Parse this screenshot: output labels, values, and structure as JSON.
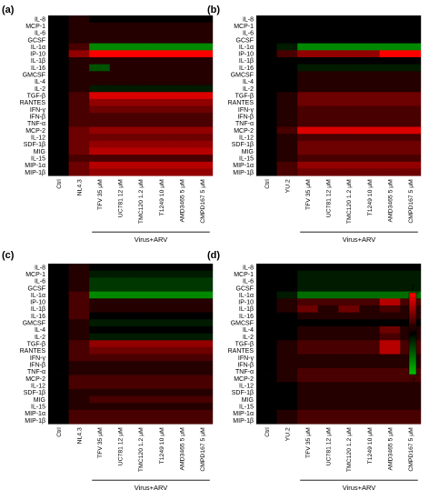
{
  "chart_data": [
    {
      "type": "heatmap",
      "panel_label": "(a)",
      "rows": [
        "IL-8",
        "MCP-1",
        "IL-6",
        "GCSF",
        "IL-1α",
        "IP-10",
        "IL-1β",
        "IL-16",
        "GMCSF",
        "IL-4",
        "IL-2",
        "TGF-β",
        "RANTES",
        "IFN-γ",
        "IFN-β",
        "TNF-α",
        "MCP-2",
        "IL-12",
        "SDF-1β",
        "MIG",
        "IL-15",
        "MIP-1α",
        "MIP-1β"
      ],
      "columns": [
        "Ctrl",
        "NL4.3",
        "TFV 35 μM",
        "UC781 12 μM",
        "TMC120 1.2 μM",
        "T1249 10 μM",
        "AMD3465 5 μM",
        "CMPD167 5 μM"
      ],
      "group_label": "Virus+ARV",
      "group_start": 2,
      "values": [
        [
          0,
          1,
          0,
          0,
          0,
          0,
          0,
          0
        ],
        [
          0,
          1,
          1,
          1,
          1,
          1,
          1,
          1
        ],
        [
          0,
          1,
          1,
          1,
          1,
          1,
          1,
          1
        ],
        [
          0,
          1,
          1,
          1,
          1,
          1,
          1,
          1
        ],
        [
          0,
          2,
          -5,
          -5,
          -5,
          -5,
          -5,
          -5
        ],
        [
          0,
          4,
          7,
          7,
          7,
          7,
          7,
          7
        ],
        [
          0,
          1,
          1,
          1,
          1,
          1,
          1,
          1
        ],
        [
          0,
          1,
          -3,
          1,
          1,
          1,
          1,
          1
        ],
        [
          0,
          1,
          1,
          1,
          1,
          1,
          1,
          1
        ],
        [
          0,
          1,
          1,
          1,
          1,
          1,
          1,
          1
        ],
        [
          0,
          1,
          -1,
          -1,
          -1,
          -1,
          -1,
          -1
        ],
        [
          0,
          2,
          6,
          6,
          6,
          6,
          6,
          6
        ],
        [
          0,
          2,
          4,
          4,
          4,
          4,
          4,
          4
        ],
        [
          0,
          2,
          3,
          3,
          3,
          3,
          3,
          3
        ],
        [
          0,
          2,
          2,
          2,
          2,
          2,
          2,
          2
        ],
        [
          0,
          2,
          2,
          2,
          2,
          2,
          2,
          2
        ],
        [
          0,
          3,
          4,
          4,
          4,
          4,
          4,
          4
        ],
        [
          0,
          3,
          3,
          3,
          3,
          3,
          3,
          3
        ],
        [
          0,
          3,
          4,
          4,
          4,
          4,
          4,
          4
        ],
        [
          0,
          3,
          5,
          5,
          5,
          5,
          5,
          5
        ],
        [
          0,
          2,
          2,
          2,
          2,
          2,
          2,
          2
        ],
        [
          0,
          3,
          5,
          5,
          5,
          5,
          5,
          5
        ],
        [
          0,
          3,
          4,
          4,
          4,
          4,
          4,
          4
        ]
      ]
    },
    {
      "type": "heatmap",
      "panel_label": "(b)",
      "rows": [
        "IL-8",
        "MCP-1",
        "IL-6",
        "GCSF",
        "IL-1α",
        "IP-10",
        "IL-1β",
        "IL-16",
        "GMCSF",
        "IL-4",
        "IL-2",
        "TGF-β",
        "RANTES",
        "IFN-γ",
        "IFN-β",
        "TNF-α",
        "MCP-2",
        "IL-12",
        "SDF-1β",
        "MIG",
        "IL-15",
        "MIP-1α",
        "MIP-1β"
      ],
      "columns": [
        "Ctrl",
        "YU.2",
        "TFV 35 μM",
        "UC781 12 μM",
        "TMC120 1.2 μM",
        "T1249 10 μM",
        "AMD3465 5 μM",
        "CMPD167 5 μM"
      ],
      "group_label": "Virus+ARV",
      "group_start": 2,
      "values": [
        [
          0,
          0,
          0,
          0,
          0,
          0,
          0,
          0
        ],
        [
          0,
          0,
          0,
          0,
          0,
          0,
          0,
          0
        ],
        [
          0,
          0,
          0,
          0,
          0,
          0,
          0,
          0
        ],
        [
          0,
          0,
          0,
          0,
          0,
          0,
          0,
          0
        ],
        [
          0,
          -1,
          -5,
          -5,
          -5,
          -5,
          -5,
          -5
        ],
        [
          0,
          2,
          4,
          4,
          4,
          4,
          7,
          7
        ],
        [
          0,
          0,
          0,
          0,
          0,
          0,
          0,
          0
        ],
        [
          0,
          0,
          -1,
          -1,
          -1,
          -1,
          -1,
          -1
        ],
        [
          0,
          0,
          1,
          1,
          1,
          1,
          1,
          1
        ],
        [
          0,
          0,
          1,
          1,
          1,
          1,
          1,
          1
        ],
        [
          0,
          0,
          1,
          1,
          1,
          1,
          1,
          1
        ],
        [
          0,
          1,
          3,
          3,
          3,
          3,
          3,
          3
        ],
        [
          0,
          1,
          3,
          3,
          3,
          3,
          3,
          3
        ],
        [
          0,
          1,
          2,
          2,
          2,
          2,
          2,
          2
        ],
        [
          0,
          1,
          2,
          2,
          2,
          2,
          2,
          2
        ],
        [
          0,
          1,
          2,
          2,
          2,
          2,
          2,
          2
        ],
        [
          0,
          2,
          6,
          6,
          6,
          6,
          6,
          6
        ],
        [
          0,
          1,
          2,
          2,
          2,
          2,
          2,
          2
        ],
        [
          0,
          1,
          3,
          3,
          3,
          3,
          3,
          3
        ],
        [
          0,
          1,
          3,
          3,
          3,
          3,
          3,
          3
        ],
        [
          0,
          1,
          2,
          2,
          2,
          2,
          2,
          2
        ],
        [
          0,
          2,
          4,
          4,
          4,
          4,
          4,
          4
        ],
        [
          0,
          2,
          3,
          3,
          3,
          3,
          3,
          3
        ]
      ]
    },
    {
      "type": "heatmap",
      "panel_label": "(c)",
      "rows": [
        "IL-8",
        "MCP-1",
        "IL-6",
        "GCSF",
        "IL-1α",
        "IP-10",
        "IL-1β",
        "IL-16",
        "GMCSF",
        "IL-4",
        "IL-2",
        "TGF-β",
        "RANTES",
        "IFN-γ",
        "IFN-β",
        "TNF-α",
        "MCP-2",
        "IL-12",
        "SDF-1β",
        "MIG",
        "IL-15",
        "MIP-1α",
        "MIP-1β"
      ],
      "columns": [
        "Ctrl",
        "NL4.3",
        "TFV 35 μM",
        "UC781 12 μM",
        "TMC120 1.2 μM",
        "T1249 10 μM",
        "AMD3465 5 μM",
        "CMPD167 5 μM"
      ],
      "group_label": "Virus+ARV",
      "group_start": 2,
      "values": [
        [
          0,
          1,
          0,
          0,
          0,
          0,
          0,
          0
        ],
        [
          0,
          1,
          -1,
          -1,
          -1,
          -1,
          -1,
          -1
        ],
        [
          0,
          1,
          -2,
          -2,
          -2,
          -2,
          -2,
          -2
        ],
        [
          0,
          1,
          -2,
          -2,
          -2,
          -2,
          -2,
          -2
        ],
        [
          0,
          2,
          -5,
          -5,
          -5,
          -5,
          -5,
          -5
        ],
        [
          0,
          2,
          1,
          1,
          1,
          1,
          1,
          1
        ],
        [
          0,
          2,
          1,
          1,
          1,
          1,
          1,
          1
        ],
        [
          0,
          2,
          0,
          0,
          0,
          0,
          0,
          0
        ],
        [
          0,
          1,
          -1,
          -1,
          -1,
          -1,
          -1,
          -1
        ],
        [
          0,
          1,
          0,
          0,
          0,
          0,
          0,
          0
        ],
        [
          0,
          1,
          -1,
          -1,
          -1,
          -1,
          -1,
          -1
        ],
        [
          0,
          2,
          4,
          4,
          4,
          4,
          4,
          4
        ],
        [
          0,
          2,
          3,
          3,
          3,
          3,
          3,
          3
        ],
        [
          0,
          2,
          2,
          2,
          2,
          2,
          2,
          2
        ],
        [
          0,
          1,
          1,
          1,
          1,
          1,
          1,
          1
        ],
        [
          0,
          1,
          1,
          1,
          1,
          1,
          1,
          1
        ],
        [
          0,
          2,
          2,
          2,
          2,
          2,
          2,
          2
        ],
        [
          0,
          2,
          2,
          2,
          2,
          2,
          2,
          2
        ],
        [
          0,
          1,
          1,
          1,
          1,
          1,
          1,
          1
        ],
        [
          0,
          1,
          2,
          2,
          2,
          2,
          2,
          2
        ],
        [
          0,
          1,
          1,
          1,
          1,
          1,
          1,
          1
        ],
        [
          0,
          2,
          2,
          2,
          2,
          2,
          2,
          2
        ],
        [
          0,
          2,
          2,
          2,
          2,
          2,
          2,
          2
        ]
      ]
    },
    {
      "type": "heatmap",
      "panel_label": "(d)",
      "rows": [
        "IL-8",
        "MCP-1",
        "IL-6",
        "GCSF",
        "IL-1α",
        "IP-10",
        "IL-1β",
        "IL-16",
        "GMCSF",
        "IL-4",
        "IL-2",
        "TGF-β",
        "RANTES",
        "IFN-γ",
        "IFN-β",
        "TNF-α",
        "MCP-2",
        "IL-12",
        "SDF-1β",
        "MIG",
        "IL-15",
        "MIP-1α",
        "MIP-1β"
      ],
      "columns": [
        "Ctrl",
        "YU.2",
        "TFV 35 μM",
        "UC781 12 μM",
        "TMC120 1.2 μM",
        "T1249 10 μM",
        "AMD3465 5 μM",
        "CMPD167 5 μM"
      ],
      "group_label": "Virus+ARV",
      "group_start": 2,
      "values": [
        [
          0,
          0,
          0,
          0,
          0,
          0,
          0,
          0
        ],
        [
          0,
          0,
          -1,
          -1,
          -1,
          -1,
          -1,
          -1
        ],
        [
          0,
          0,
          -1,
          -1,
          -1,
          -1,
          -1,
          -1
        ],
        [
          0,
          0,
          -1,
          -1,
          -1,
          -1,
          -1,
          -1
        ],
        [
          0,
          -1,
          -4,
          -4,
          -4,
          -4,
          -4,
          -4
        ],
        [
          0,
          1,
          2,
          2,
          2,
          2,
          5,
          2
        ],
        [
          0,
          1,
          3,
          1,
          3,
          1,
          2,
          1
        ],
        [
          0,
          0,
          1,
          1,
          1,
          1,
          1,
          1
        ],
        [
          0,
          0,
          0,
          0,
          0,
          0,
          0,
          0
        ],
        [
          0,
          0,
          1,
          1,
          1,
          1,
          3,
          1
        ],
        [
          0,
          0,
          1,
          1,
          1,
          1,
          2,
          1
        ],
        [
          0,
          1,
          2,
          2,
          2,
          2,
          5,
          2
        ],
        [
          0,
          1,
          2,
          2,
          2,
          2,
          5,
          2
        ],
        [
          0,
          1,
          1,
          1,
          1,
          1,
          1,
          1
        ],
        [
          0,
          1,
          1,
          1,
          1,
          1,
          1,
          1
        ],
        [
          0,
          1,
          2,
          2,
          2,
          2,
          2,
          2
        ],
        [
          0,
          1,
          2,
          2,
          2,
          2,
          2,
          2
        ],
        [
          0,
          0,
          1,
          1,
          1,
          1,
          1,
          1
        ],
        [
          0,
          0,
          1,
          1,
          1,
          1,
          1,
          1
        ],
        [
          0,
          0,
          1,
          1,
          1,
          1,
          1,
          1
        ],
        [
          0,
          0,
          1,
          1,
          1,
          1,
          1,
          1
        ],
        [
          0,
          1,
          2,
          2,
          2,
          2,
          2,
          2
        ],
        [
          0,
          1,
          2,
          2,
          2,
          2,
          2,
          2
        ]
      ]
    }
  ],
  "colorbar": {
    "min": -7,
    "max": 7,
    "ticks": [
      "7",
      "0",
      "-7"
    ],
    "colors": {
      "high": "#ff0000",
      "mid": "#000000",
      "low": "#00c000"
    }
  }
}
